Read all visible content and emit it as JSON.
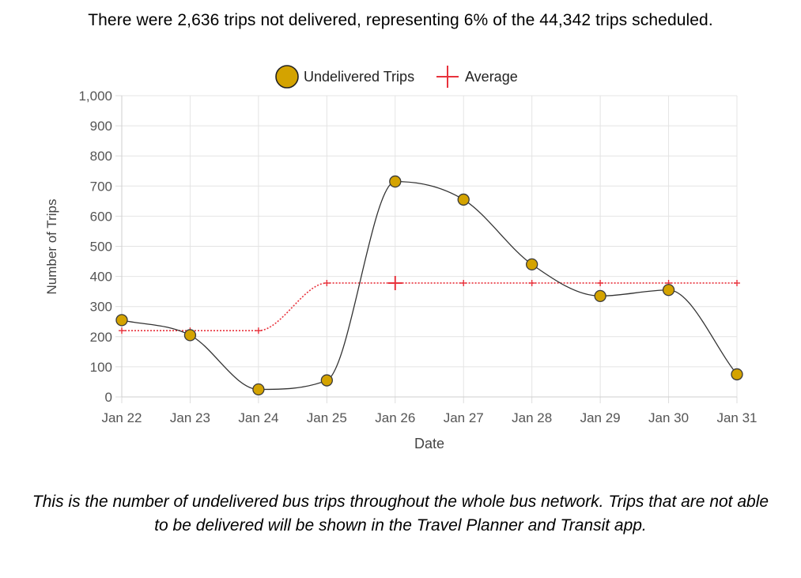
{
  "headline": "There were 2,636 trips not delivered, representing 6% of the 44,342 trips scheduled.",
  "caption": "This is the number of undelivered bus trips throughout the whole bus network.  Trips that are not able to be delivered will be shown in the Travel Planner and Transit app.",
  "chart_data": {
    "type": "line",
    "title": "",
    "xlabel": "Date",
    "ylabel": "Number of Trips",
    "categories": [
      "Jan 22",
      "Jan 23",
      "Jan 24",
      "Jan 25",
      "Jan 26",
      "Jan 27",
      "Jan 28",
      "Jan 29",
      "Jan 30",
      "Jan 31"
    ],
    "ylim": [
      0,
      1000
    ],
    "yticks": [
      0,
      100,
      200,
      300,
      400,
      500,
      600,
      700,
      800,
      900,
      1000
    ],
    "ytick_labels": [
      "0",
      "100",
      "200",
      "300",
      "400",
      "500",
      "600",
      "700",
      "800",
      "900",
      "1,000"
    ],
    "grid": true,
    "legend": "top-center",
    "series": [
      {
        "name": "Undelivered Trips",
        "values": [
          255,
          205,
          25,
          55,
          715,
          655,
          440,
          335,
          355,
          75
        ],
        "color": "#d4a300",
        "line_color": "#333333"
      },
      {
        "name": "Average",
        "values": [
          220,
          220,
          220,
          378,
          378,
          378,
          378,
          378,
          378,
          378
        ],
        "color": "#e8323c"
      }
    ]
  }
}
